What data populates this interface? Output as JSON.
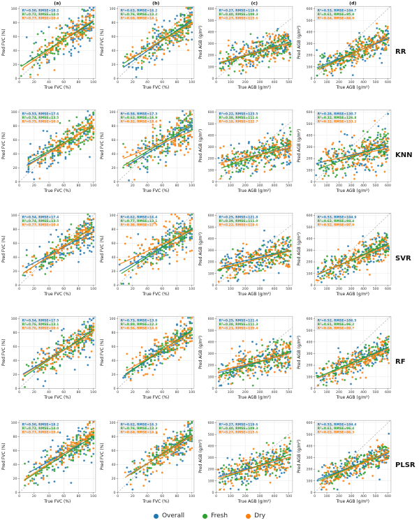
{
  "figure": {
    "legend": [
      {
        "label": "Overall",
        "color": "#1f77b4"
      },
      {
        "label": "Fresh",
        "color": "#2ca02c"
      },
      {
        "label": "Dry",
        "color": "#ff7f0e"
      }
    ],
    "annotation_format": "R²={r2}, RMSE={rmse}"
  },
  "chart_data": {
    "type": "scatter",
    "legend_position": "bottom-center",
    "grid": true,
    "identity_line": "dashed 1:1 reference line in every panel",
    "series_names": [
      "Overall",
      "Fresh",
      "Dry"
    ],
    "series_colors": [
      "#1f77b4",
      "#2ca02c",
      "#ff7f0e"
    ],
    "columns": [
      {
        "id": "(a)",
        "xlabel": "True FVC (%)",
        "ylabel": "Pred FVC (%)",
        "xlim": [
          0,
          103
        ],
        "ylim": [
          0,
          103
        ],
        "xticks": [
          0,
          20,
          40,
          60,
          80,
          100
        ],
        "yticks": [
          0,
          20,
          40,
          60,
          80,
          100
        ]
      },
      {
        "id": "(b)",
        "xlabel": "True FVC (%)",
        "ylabel": "Pred FVC (%)",
        "xlim": [
          0,
          103
        ],
        "ylim": [
          0,
          103
        ],
        "xticks": [
          0,
          20,
          40,
          60,
          80,
          100
        ],
        "yticks": [
          0,
          20,
          40,
          60,
          80,
          100
        ]
      },
      {
        "id": "(c)",
        "xlabel": "True AGB (g/m²)",
        "ylabel": "Pred AGB (g/m²)",
        "xlim": [
          0,
          525
        ],
        "ylim": [
          0,
          620
        ],
        "xticks": [
          0,
          100,
          200,
          300,
          400,
          500
        ],
        "yticks": [
          0,
          100,
          200,
          300,
          400,
          500,
          600
        ]
      },
      {
        "id": "(d)",
        "xlabel": "True AGB (g/m²)",
        "ylabel": "Pred AGB (g/m²)",
        "xlim": [
          0,
          625
        ],
        "ylim": [
          0,
          620
        ],
        "xticks": [
          0,
          100,
          200,
          300,
          400,
          500,
          600
        ],
        "yticks": [
          0,
          100,
          200,
          300,
          400,
          500,
          600
        ]
      }
    ],
    "rows": [
      {
        "model": "RR",
        "panels": [
          {
            "stats": [
              {
                "r2": 0.5,
                "rmse": 18.2
              },
              {
                "r2": 0.72,
                "rmse": 14.0
              },
              {
                "r2": 0.77,
                "rmse": 10.4
              }
            ]
          },
          {
            "stats": [
              {
                "r2": 0.63,
                "rmse": 16.2
              },
              {
                "r2": 0.76,
                "rmse": 13.2
              },
              {
                "r2": 0.6,
                "rmse": 14.1
              }
            ]
          },
          {
            "stats": [
              {
                "r2": 0.27,
                "rmse": 119.6
              },
              {
                "r2": 0.4,
                "rmse": 109.3
              },
              {
                "r2": 0.27,
                "rmse": 115.6
              }
            ]
          },
          {
            "stats": [
              {
                "r2": 0.53,
                "rmse": 104.7
              },
              {
                "r2": 0.61,
                "rmse": 95.8
              },
              {
                "r2": 0.64,
                "rmse": 84.0
              }
            ]
          }
        ]
      },
      {
        "model": "KNN",
        "panels": [
          {
            "stats": [
              {
                "r2": 0.53,
                "rmse": 17.6
              },
              {
                "r2": 0.74,
                "rmse": 13.5
              },
              {
                "r2": 0.75,
                "rmse": 10.8
              }
            ]
          },
          {
            "stats": [
              {
                "r2": 0.58,
                "rmse": 17.3
              },
              {
                "r2": 0.63,
                "rmse": 16.9
              },
              {
                "r2": 0.32,
                "rmse": 18.4
              }
            ]
          },
          {
            "stats": [
              {
                "r2": 0.22,
                "rmse": 123.5
              },
              {
                "r2": 0.38,
                "rmse": 111.6
              },
              {
                "r2": 0.18,
                "rmse": 122.7
              }
            ]
          },
          {
            "stats": [
              {
                "r2": 0.28,
                "rmse": 130.7
              },
              {
                "r2": 0.32,
                "rmse": 126.8
              },
              {
                "r2": 0.12,
                "rmse": 133.2
              }
            ]
          }
        ]
      },
      {
        "model": "SVR",
        "panels": [
          {
            "stats": [
              {
                "r2": 0.54,
                "rmse": 17.4
              },
              {
                "r2": 0.74,
                "rmse": 13.5
              },
              {
                "r2": 0.77,
                "rmse": 10.4
              }
            ]
          },
          {
            "stats": [
              {
                "r2": 0.62,
                "rmse": 16.4
              },
              {
                "r2": 0.77,
                "rmse": 13.1
              },
              {
                "r2": 0.38,
                "rmse": 17.5
              }
            ]
          },
          {
            "stats": [
              {
                "r2": 0.25,
                "rmse": 121.8
              },
              {
                "r2": 0.39,
                "rmse": 111.0
              },
              {
                "r2": 0.22,
                "rmse": 119.6
              }
            ]
          },
          {
            "stats": [
              {
                "r2": 0.53,
                "rmse": 104.9
              },
              {
                "r2": 0.62,
                "rmse": 94.4
              },
              {
                "r2": 0.52,
                "rmse": 97.0
              }
            ]
          }
        ]
      },
      {
        "model": "RF",
        "panels": [
          {
            "stats": [
              {
                "r2": 0.54,
                "rmse": 17.5
              },
              {
                "r2": 0.76,
                "rmse": 13.1
              },
              {
                "r2": 0.76,
                "rmse": 10.6
              }
            ]
          },
          {
            "stats": [
              {
                "r2": 0.73,
                "rmse": 13.8
              },
              {
                "r2": 0.8,
                "rmse": 12.3
              },
              {
                "r2": 0.56,
                "rmse": 14.8
              }
            ]
          },
          {
            "stats": [
              {
                "r2": 0.25,
                "rmse": 121.4
              },
              {
                "r2": 0.38,
                "rmse": 111.3
              },
              {
                "r2": 0.21,
                "rmse": 120.4
              }
            ]
          },
          {
            "stats": [
              {
                "r2": 0.52,
                "rmse": 106.5
              },
              {
                "r2": 0.61,
                "rmse": 96.2
              },
              {
                "r2": 0.6,
                "rmse": 89.7
              }
            ]
          }
        ]
      },
      {
        "model": "PLSR",
        "panels": [
          {
            "stats": [
              {
                "r2": 0.5,
                "rmse": 18.2
              },
              {
                "r2": 0.72,
                "rmse": 14.0
              },
              {
                "r2": 0.77,
                "rmse": 10.4
              }
            ]
          },
          {
            "stats": [
              {
                "r2": 0.62,
                "rmse": 16.3
              },
              {
                "r2": 0.76,
                "rmse": 13.3
              },
              {
                "r2": 0.6,
                "rmse": 14.3
              }
            ]
          },
          {
            "stats": [
              {
                "r2": 0.27,
                "rmse": 119.6
              },
              {
                "r2": 0.4,
                "rmse": 109.3
              },
              {
                "r2": 0.27,
                "rmse": 115.6
              }
            ]
          },
          {
            "stats": [
              {
                "r2": 0.53,
                "rmse": 104.4
              },
              {
                "r2": 0.61,
                "rmse": 96.4
              },
              {
                "r2": 0.63,
                "rmse": 86.3
              }
            ]
          }
        ]
      }
    ]
  }
}
